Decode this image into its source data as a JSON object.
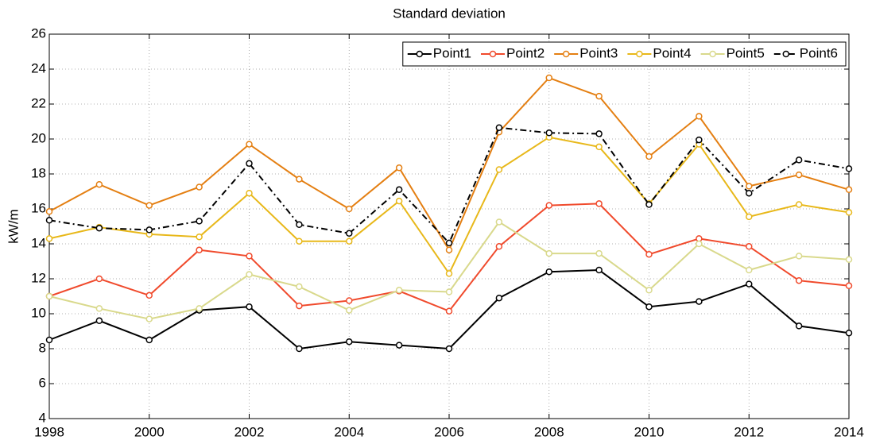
{
  "chart_data": {
    "type": "line",
    "title": "Standard deviation",
    "ylabel": "kW/m",
    "x": [
      1998,
      1999,
      2000,
      2001,
      2002,
      2003,
      2004,
      2005,
      2006,
      2007,
      2008,
      2009,
      2010,
      2011,
      2012,
      2013,
      2014
    ],
    "xlim": [
      1998,
      2014
    ],
    "xticks": [
      1998,
      2000,
      2002,
      2004,
      2006,
      2008,
      2010,
      2012,
      2014
    ],
    "ylim": [
      4,
      26
    ],
    "yticks": [
      4,
      6,
      8,
      10,
      12,
      14,
      16,
      18,
      20,
      22,
      24,
      26
    ],
    "grid": true,
    "legend": "upper right",
    "series": [
      {
        "name": "Point1",
        "color": "#000000",
        "linestyle": "solid",
        "values": [
          8.5,
          9.6,
          8.5,
          10.2,
          10.4,
          8.0,
          8.4,
          8.2,
          8.0,
          10.9,
          12.4,
          12.5,
          10.4,
          10.7,
          11.7,
          9.3,
          8.9
        ]
      },
      {
        "name": "Point2",
        "color": "#f04a2c",
        "linestyle": "solid",
        "values": [
          11.0,
          12.0,
          11.05,
          13.65,
          13.3,
          10.45,
          10.75,
          11.3,
          10.15,
          13.85,
          16.2,
          16.3,
          13.4,
          14.3,
          13.85,
          11.9,
          11.6
        ]
      },
      {
        "name": "Point3",
        "color": "#e47f12",
        "linestyle": "solid",
        "values": [
          15.85,
          17.4,
          16.2,
          17.25,
          19.7,
          17.7,
          16.0,
          18.35,
          13.65,
          20.4,
          23.5,
          22.45,
          19.0,
          21.3,
          17.3,
          17.95,
          17.1
        ]
      },
      {
        "name": "Point4",
        "color": "#e8b81a",
        "linestyle": "solid",
        "values": [
          14.3,
          14.95,
          14.55,
          14.4,
          16.9,
          14.15,
          14.15,
          16.45,
          12.3,
          18.25,
          20.1,
          19.55,
          16.3,
          19.7,
          15.55,
          16.25,
          15.8
        ]
      },
      {
        "name": "Point5",
        "color": "#d9d98c",
        "linestyle": "solid",
        "values": [
          11.0,
          10.3,
          9.7,
          10.3,
          12.25,
          11.55,
          10.2,
          11.35,
          11.25,
          15.25,
          13.45,
          13.45,
          11.35,
          14.0,
          12.5,
          13.3,
          13.1
        ]
      },
      {
        "name": "Point6",
        "color": "#000000",
        "linestyle": "dashdot",
        "values": [
          15.35,
          14.9,
          14.8,
          15.3,
          18.6,
          15.1,
          14.6,
          17.1,
          14.05,
          20.65,
          20.35,
          20.3,
          16.25,
          19.95,
          16.9,
          18.8,
          18.3
        ]
      }
    ]
  }
}
